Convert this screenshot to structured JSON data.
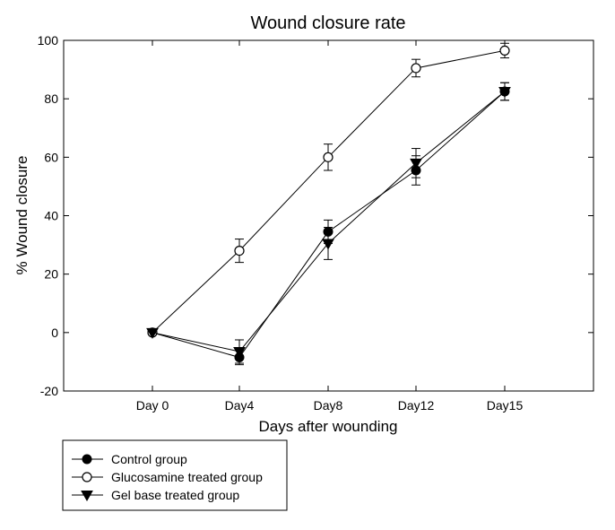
{
  "chart_data": {
    "type": "line",
    "title": "Wound closure rate",
    "xlabel": "Days after wounding",
    "ylabel": "% Wound closure",
    "categories": [
      "Day 0",
      "Day4",
      "Day8",
      "Day12",
      "Day15"
    ],
    "ylim": [
      -20,
      100
    ],
    "yticks": [
      -20,
      0,
      20,
      40,
      60,
      80,
      100
    ],
    "grid": false,
    "legend_position": "bottom-left",
    "series": [
      {
        "name": "Control group",
        "marker": "filled-circle",
        "values": [
          0,
          -8.5,
          34.5,
          55.5,
          82.5
        ],
        "error": [
          0,
          2.5,
          4.0,
          5.0,
          3.0
        ]
      },
      {
        "name": "Glucosamine treated group",
        "marker": "open-circle",
        "values": [
          0,
          28,
          60,
          90.5,
          96.5
        ],
        "error": [
          0,
          4.0,
          4.5,
          3.0,
          2.5
        ]
      },
      {
        "name": "Gel base treated group",
        "marker": "filled-triangle-down",
        "values": [
          0,
          -6.5,
          30.5,
          58,
          82.5
        ],
        "error": [
          0,
          4.0,
          5.5,
          5.0,
          3.0
        ]
      }
    ]
  }
}
